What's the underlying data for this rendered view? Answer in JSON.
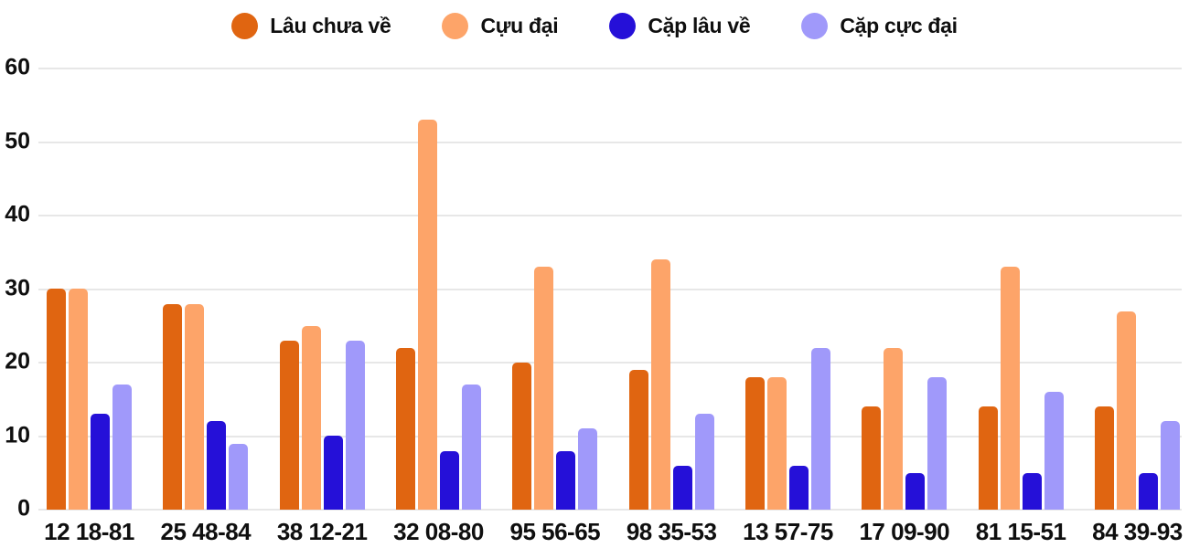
{
  "chart_data": {
    "type": "bar",
    "title": "",
    "xlabel": "",
    "ylabel": "",
    "ylim": [
      0,
      60
    ],
    "yticks": [
      0,
      10,
      20,
      30,
      40,
      50,
      60
    ],
    "grid": "horizontal",
    "legend_position": "top",
    "categories": [
      "12 18-81",
      "25 48-84",
      "38 12-21",
      "32 08-80",
      "95 56-65",
      "98 35-53",
      "13 57-75",
      "17 09-90",
      "81 15-51",
      "84 39-93"
    ],
    "series": [
      {
        "name": "Lâu chưa về",
        "color": "#E06511",
        "values": [
          30,
          28,
          23,
          22,
          20,
          19,
          18,
          14,
          14,
          14
        ]
      },
      {
        "name": "Cựu đại",
        "color": "#FDA469",
        "values": [
          30,
          28,
          25,
          53,
          33,
          34,
          18,
          22,
          33,
          27
        ]
      },
      {
        "name": "Cặp lâu về",
        "color": "#2510D8",
        "values": [
          13,
          12,
          10,
          8,
          8,
          6,
          6,
          5,
          5,
          5
        ]
      },
      {
        "name": "Cặp cực đại",
        "color": "#A099FA",
        "values": [
          17,
          9,
          23,
          17,
          11,
          13,
          22,
          18,
          16,
          12
        ]
      }
    ]
  },
  "colors": {
    "background": "#FFFFFF",
    "grid": "#E7E7E7",
    "text": "#0F0F0F"
  }
}
